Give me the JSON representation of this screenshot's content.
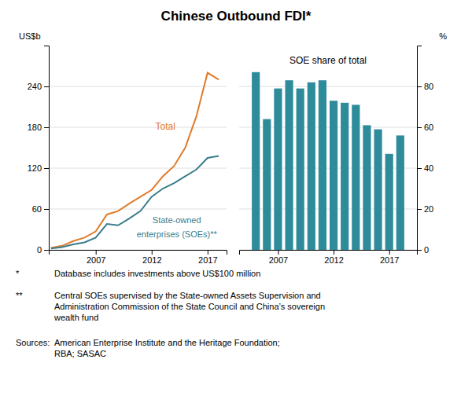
{
  "chart_data": [
    {
      "type": "line",
      "title": "Chinese Outbound FDI*",
      "y_label": "US$b",
      "x": [
        2003,
        2004,
        2005,
        2006,
        2007,
        2008,
        2009,
        2010,
        2011,
        2012,
        2013,
        2014,
        2015,
        2016,
        2017,
        2018
      ],
      "xlim": [
        2002.8,
        2018.7
      ],
      "xticks": [
        2007,
        2012,
        2017
      ],
      "ylim": [
        0,
        300
      ],
      "yticks": [
        0,
        60,
        120,
        180,
        240
      ],
      "grid": true,
      "series": [
        {
          "name": "Total",
          "color": "#E07B2A",
          "values": [
            3,
            6,
            13,
            18,
            27,
            52,
            57,
            68,
            78,
            88,
            108,
            123,
            150,
            196,
            260,
            250
          ]
        },
        {
          "name": "State-owned\nenterprises (SOEs)**",
          "color": "#3A7D8C",
          "values": [
            2,
            4,
            8,
            11,
            18,
            38,
            36,
            46,
            57,
            78,
            90,
            98,
            108,
            118,
            135,
            138
          ]
        }
      ],
      "annotations": [
        "*",
        "Database includes investments above US$100 million",
        "**",
        "Central SOEs supervised by the State-owned Assets Supervision and\nAdministration Commission of the State Council and China’s sovereign\nwealth fund",
        "Sources:",
        "American Enterprise Institute and the Heritage Foundation;\nRBA; SASAC"
      ]
    },
    {
      "type": "bar",
      "title": "SOE share of total",
      "y_label": "%",
      "x": [
        2005,
        2006,
        2007,
        2008,
        2009,
        2010,
        2011,
        2012,
        2013,
        2014,
        2015,
        2016,
        2017,
        2018
      ],
      "xlim": [
        2003.5,
        2019.5
      ],
      "xticks": [
        2007,
        2012,
        2017
      ],
      "ylim": [
        0,
        100
      ],
      "yticks": [
        0,
        20,
        40,
        60,
        80
      ],
      "grid": true,
      "color": "#2E8B9A",
      "values": [
        87,
        64,
        79,
        83,
        79,
        82,
        83,
        73,
        72,
        71,
        61,
        59,
        47,
        56
      ]
    }
  ]
}
